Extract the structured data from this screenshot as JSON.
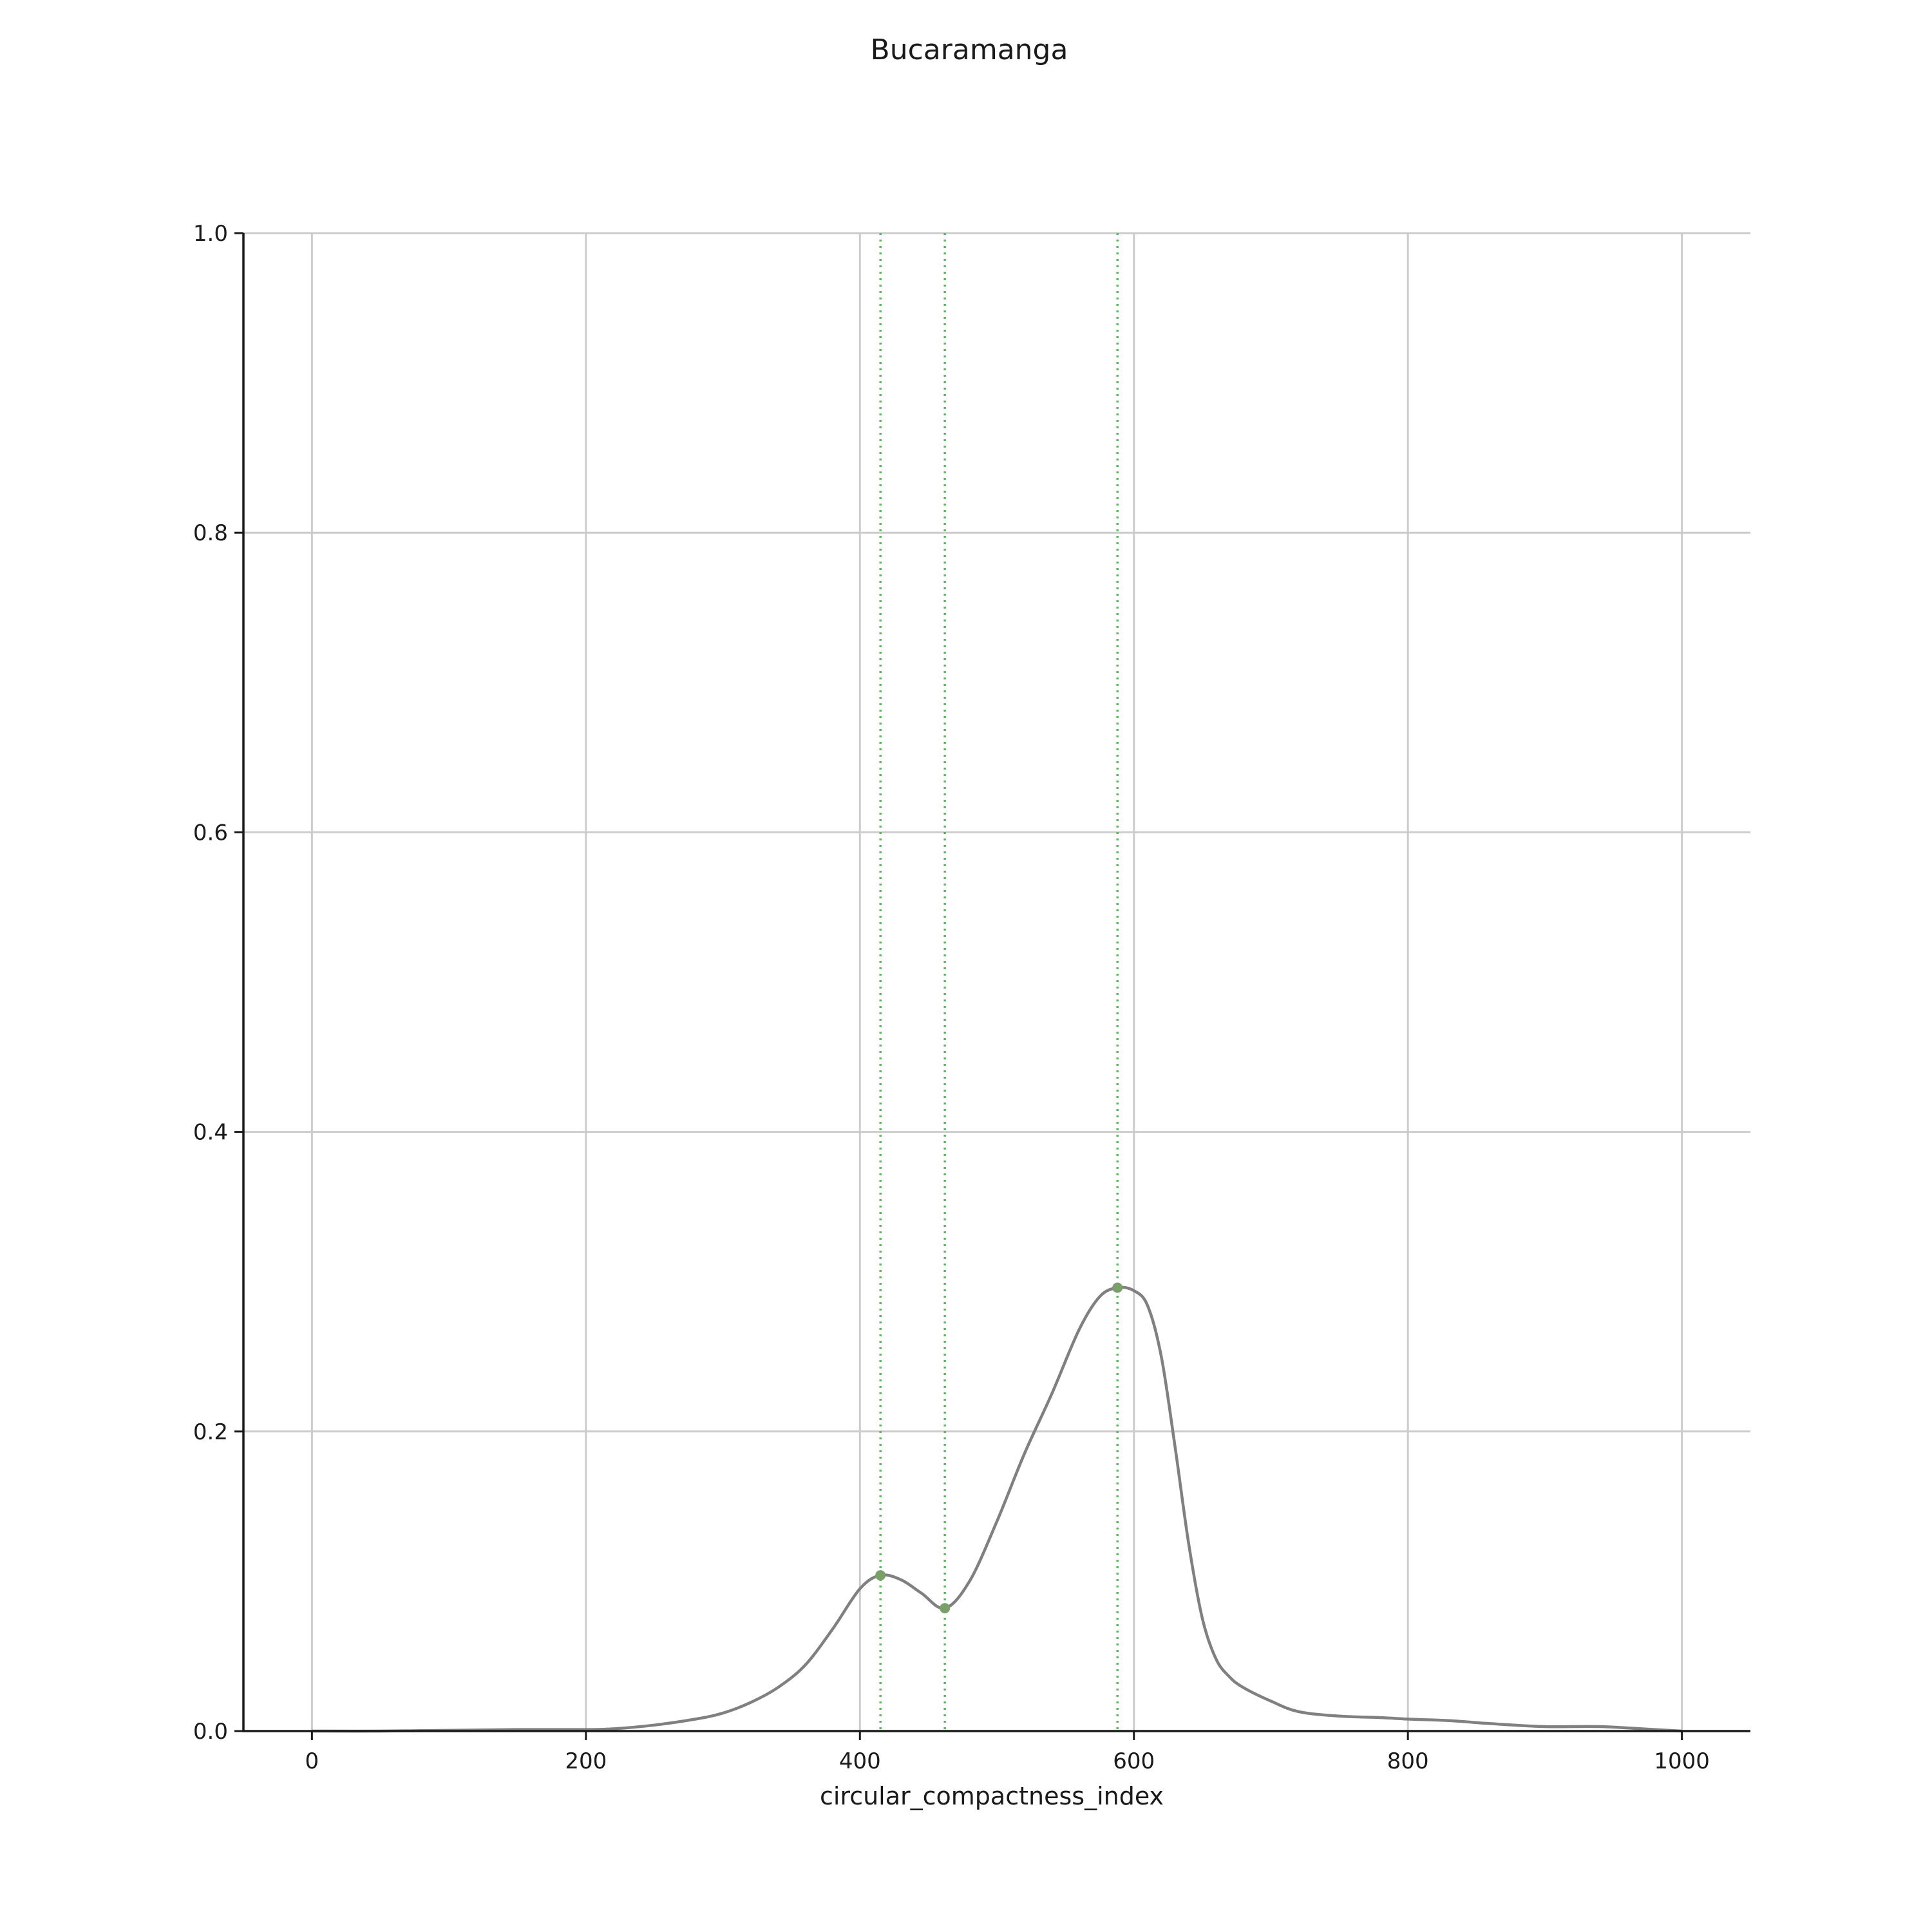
{
  "chart_data": {
    "type": "line",
    "title": "Bucaramanga",
    "xlabel": "circular_compactness_index",
    "ylabel": "",
    "xlim": [
      -50,
      1050
    ],
    "ylim": [
      0,
      1
    ],
    "x_ticks": [
      0,
      200,
      400,
      600,
      800,
      1000
    ],
    "x_tick_labels": [
      "0",
      "200",
      "400",
      "600",
      "800",
      "1000"
    ],
    "y_ticks": [
      0,
      0.2,
      0.4,
      0.6,
      0.8,
      1.0
    ],
    "y_tick_labels": [
      "0.0",
      "0.2",
      "0.4",
      "0.6",
      "0.8",
      "1.0"
    ],
    "grid": true,
    "series": [
      {
        "color": "#808080",
        "x": [
          0,
          50,
          100,
          150,
          200,
          220,
          250,
          280,
          300,
          320,
          340,
          360,
          380,
          400,
          415,
          430,
          445,
          462,
          480,
          500,
          520,
          540,
          560,
          575,
          588,
          600,
          610,
          620,
          630,
          640,
          650,
          660,
          670,
          680,
          700,
          720,
          750,
          780,
          800,
          830,
          860,
          900,
          940,
          980,
          1000
        ],
        "y": [
          0.0,
          0.0,
          0.0005,
          0.001,
          0.001,
          0.0015,
          0.004,
          0.008,
          0.012,
          0.019,
          0.029,
          0.044,
          0.068,
          0.095,
          0.104,
          0.101,
          0.092,
          0.082,
          0.1,
          0.14,
          0.185,
          0.225,
          0.268,
          0.29,
          0.296,
          0.294,
          0.284,
          0.25,
          0.19,
          0.125,
          0.075,
          0.048,
          0.036,
          0.029,
          0.02,
          0.013,
          0.01,
          0.009,
          0.008,
          0.007,
          0.005,
          0.003,
          0.003,
          0.001,
          0.0
        ]
      }
    ],
    "markers": [
      {
        "x": 415,
        "y": 0.104,
        "color": "#7aa06a"
      },
      {
        "x": 462,
        "y": 0.082,
        "color": "#7aa06a"
      },
      {
        "x": 588,
        "y": 0.296,
        "color": "#7aa06a"
      }
    ],
    "vlines": [
      {
        "x": 415,
        "color": "#5cb85c",
        "style": "dotted"
      },
      {
        "x": 462,
        "color": "#5cb85c",
        "style": "dotted"
      },
      {
        "x": 588,
        "color": "#5cb85c",
        "style": "dotted"
      }
    ],
    "colors": {
      "grid": "#cccccc",
      "axis": "#1a1a1a"
    }
  }
}
